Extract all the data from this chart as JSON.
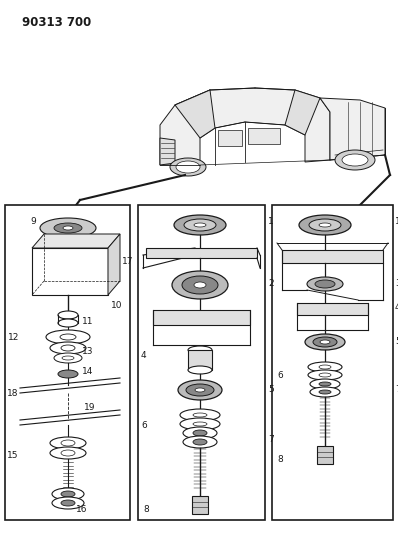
{
  "title_code": "90313 700",
  "bg_color": "#ffffff",
  "line_color": "#1a1a1a",
  "fig_width": 3.98,
  "fig_height": 5.33,
  "dpi": 100
}
